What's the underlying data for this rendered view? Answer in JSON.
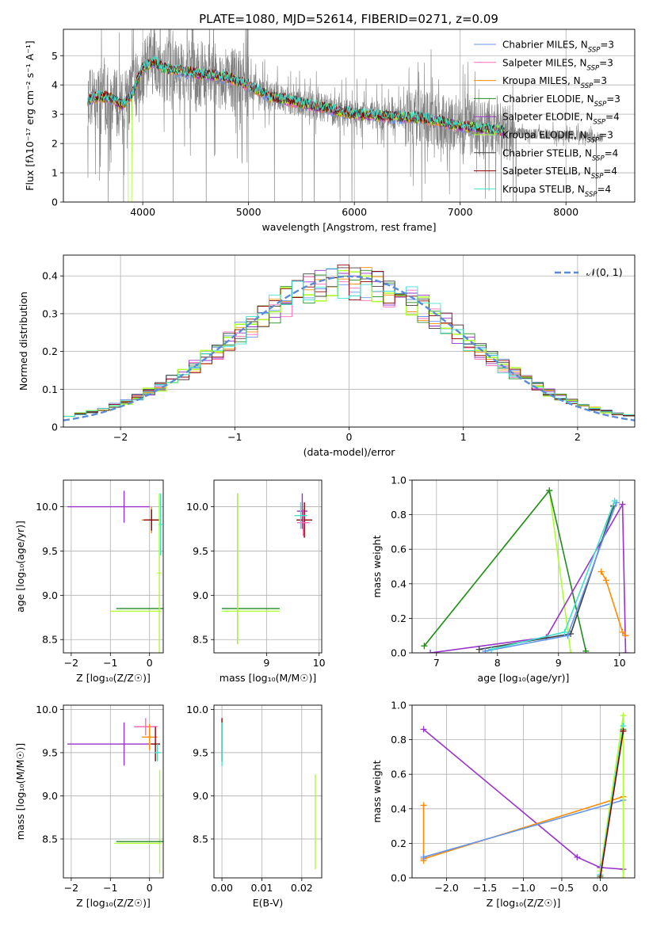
{
  "colors": {
    "cornflower": "#6495ed",
    "hotpink": "#ff69b4",
    "orange": "#ff8c00",
    "darkgreen": "#228b22",
    "purple": "#9932cc",
    "yellowgreen": "#adff2f",
    "gray": "#808080",
    "darkred": "#8b0000",
    "cyan": "#40e0d0"
  },
  "chart_data": [
    {
      "id": "spectrum",
      "type": "line",
      "title": "PLATE=1080, MJD=52614, FIBERID=0271, z=0.09",
      "xlabel": "wavelength [Angstrom, rest frame]",
      "ylabel": "Flux [fλ10⁻¹⁷ erg cm⁻² s⁻¹ A⁻¹]",
      "xlim": [
        3250,
        8650
      ],
      "ylim": [
        0,
        5.9
      ],
      "xticks": [
        4000,
        5000,
        6000,
        7000,
        8000
      ],
      "yticks": [
        0,
        1,
        2,
        3,
        4,
        5
      ],
      "legend_position": "top-right",
      "legend": [
        {
          "label": "Chabrier MILES, N_SSP=3",
          "color": "#6495ed"
        },
        {
          "label": "Salpeter MILES, N_SSP=3",
          "color": "#ff69b4"
        },
        {
          "label": "Kroupa MILES, N_SSP=3",
          "color": "#ff8c00"
        },
        {
          "label": "Chabrier ELODIE, N_SSP=3",
          "color": "#228b22"
        },
        {
          "label": "Salpeter ELODIE, N_SSP=4",
          "color": "#9932cc"
        },
        {
          "label": "Kroupa ELODIE, N_SSP=3",
          "color": "#adff2f"
        },
        {
          "label": "Chabrier STELIB, N_SSP=4",
          "color": "#404040"
        },
        {
          "label": "Salpeter STELIB, N_SSP=4",
          "color": "#8b0000"
        },
        {
          "label": "Kroupa STELIB, N_SSP=4",
          "color": "#40e0d0"
        }
      ],
      "model_continuum": {
        "x": [
          3480,
          3600,
          3700,
          3800,
          3900,
          4000,
          4100,
          4200,
          4400,
          4600,
          4800,
          5000,
          5200,
          5400,
          5600,
          5800,
          6000,
          6200,
          6400,
          6600,
          6800,
          7000,
          7200,
          7400
        ],
        "y": [
          3.5,
          3.6,
          3.55,
          3.3,
          3.7,
          4.6,
          4.8,
          4.55,
          4.45,
          4.35,
          4.25,
          4.0,
          3.6,
          3.45,
          3.3,
          3.15,
          3.0,
          2.95,
          2.9,
          2.88,
          2.75,
          2.6,
          2.5,
          2.45
        ]
      },
      "observed_range": [
        3480,
        8350
      ]
    },
    {
      "id": "residuals",
      "type": "line",
      "xlabel": "(data-model)/error",
      "ylabel": "Normed distribution",
      "xlim": [
        -2.5,
        2.5
      ],
      "ylim": [
        0,
        0.455
      ],
      "xticks": [
        -2,
        -1,
        0,
        1,
        2
      ],
      "yticks": [
        0.0,
        0.1,
        0.2,
        0.3,
        0.4
      ],
      "legend_position": "top-right",
      "legend": [
        {
          "label": "𝒩(0, 1)",
          "color": "#5b8ad6"
        }
      ],
      "reference_curve": "standard normal density"
    },
    {
      "id": "age_vs_Z",
      "type": "scatter",
      "xlabel": "Z [log₁₀(Z/Z☉)]",
      "ylabel": "age  [log₁₀(age/yr)]",
      "xlim": [
        -2.2,
        0.35
      ],
      "ylim": [
        8.35,
        10.3
      ],
      "xticks": [
        -2,
        -1,
        0
      ],
      "yticks": [
        8.5,
        9.0,
        9.5,
        10.0
      ],
      "points": [
        {
          "x": -0.65,
          "y": 10.0,
          "xerr": [
            1.45,
            0.65
          ],
          "yerr": 0.18,
          "color": "#9932cc"
        },
        {
          "x": 0.05,
          "y": 9.85,
          "xerr": 0.25,
          "yerr": 0.15,
          "color": "#ff8c00"
        },
        {
          "x": 0.05,
          "y": 9.85,
          "xerr": 0.2,
          "yerr": 0.12,
          "color": "#8b0000"
        },
        {
          "x": 0.28,
          "y": 9.8,
          "xerr": 0.05,
          "yerr": 0.35,
          "color": "#40e0d0"
        },
        {
          "x": -0.25,
          "y": 8.85,
          "xerr": 0.6,
          "yerr": 0.0,
          "color": "#228b22"
        },
        {
          "x": 0.25,
          "y": 9.25,
          "xerr": 0.05,
          "yerr": 0.9,
          "color": "#adff2f"
        },
        {
          "x": -0.35,
          "y": 8.82,
          "xerr": 0.65,
          "yerr": 0.0,
          "color": "#adff2f"
        }
      ]
    },
    {
      "id": "age_vs_mass",
      "type": "scatter",
      "xlabel": "mass [log₁₀(M/M☉)]",
      "ylabel": "",
      "xlim": [
        8.0,
        10.05
      ],
      "ylim": [
        8.35,
        10.3
      ],
      "xticks": [
        9,
        10
      ],
      "yticks": [
        8.5,
        9.0,
        9.5,
        10.0
      ],
      "points": [
        {
          "x": 8.7,
          "y": 8.85,
          "xerr": 0.55,
          "yerr": 0.0,
          "color": "#228b22"
        },
        {
          "x": 8.45,
          "y": 9.3,
          "xerr": 0.0,
          "yerr": 0.85,
          "color": "#228b22"
        },
        {
          "x": 8.45,
          "y": 9.3,
          "xerr": 0.0,
          "yerr": 0.85,
          "color": "#adff2f"
        },
        {
          "x": 8.7,
          "y": 8.82,
          "xerr": 0.55,
          "yerr": 0.0,
          "color": "#adff2f"
        },
        {
          "x": 9.68,
          "y": 9.95,
          "xerr": 0.1,
          "yerr": 0.2,
          "color": "#9932cc"
        },
        {
          "x": 9.72,
          "y": 9.85,
          "xerr": 0.15,
          "yerr": 0.2,
          "color": "#8b0000"
        },
        {
          "x": 9.7,
          "y": 9.82,
          "xerr": 0.12,
          "yerr": 0.15,
          "color": "#ff69b4"
        },
        {
          "x": 9.65,
          "y": 9.9,
          "xerr": 0.12,
          "yerr": 0.15,
          "color": "#40e0d0"
        }
      ]
    },
    {
      "id": "weight_vs_age",
      "type": "line",
      "xlabel": "age  [log₁₀(age/yr)]",
      "ylabel": "mass weight",
      "xlim": [
        6.6,
        10.25
      ],
      "ylim": [
        0,
        1.0
      ],
      "xticks": [
        7,
        8,
        9,
        10
      ],
      "yticks": [
        0.0,
        0.2,
        0.4,
        0.6,
        0.8,
        1.0
      ],
      "series": [
        {
          "color": "#adff2f",
          "x": [
            6.8,
            8.85,
            9.2
          ],
          "y": [
            0.04,
            0.94,
            0.0
          ]
        },
        {
          "color": "#228b22",
          "x": [
            6.8,
            8.85,
            9.45
          ],
          "y": [
            0.04,
            0.94,
            0.01
          ]
        },
        {
          "color": "#9932cc",
          "x": [
            6.9,
            8.8,
            10.05,
            10.1
          ],
          "y": [
            0.0,
            0.09,
            0.86,
            0.0
          ]
        },
        {
          "color": "#404040",
          "x": [
            7.7,
            9.2,
            9.9
          ],
          "y": [
            0.02,
            0.11,
            0.85
          ]
        },
        {
          "color": "#6495ed",
          "x": [
            7.8,
            9.15,
            9.95
          ],
          "y": [
            0.01,
            0.1,
            0.87
          ]
        },
        {
          "color": "#40e0d0",
          "x": [
            7.9,
            9.1,
            9.92
          ],
          "y": [
            0.02,
            0.12,
            0.88
          ]
        },
        {
          "color": "#ff8c00",
          "x": [
            9.7,
            9.78,
            10.05,
            10.1
          ],
          "y": [
            0.47,
            0.42,
            0.12,
            0.1
          ]
        }
      ]
    },
    {
      "id": "mass_vs_Z",
      "type": "scatter",
      "xlabel": "Z [log₁₀(Z/Z☉)]",
      "ylabel": "mass [log₁₀(M/M☉)]",
      "xlim": [
        -2.2,
        0.35
      ],
      "ylim": [
        8.05,
        10.05
      ],
      "xticks": [
        -2,
        -1,
        0
      ],
      "yticks": [
        8.5,
        9.0,
        9.5,
        10.0
      ],
      "points": [
        {
          "x": -0.65,
          "y": 9.6,
          "xerr": [
            1.45,
            0.65
          ],
          "yerr": 0.25,
          "color": "#9932cc"
        },
        {
          "x": -0.1,
          "y": 9.8,
          "xerr": 0.3,
          "yerr": 0.1,
          "color": "#ff69b4"
        },
        {
          "x": 0.0,
          "y": 9.68,
          "xerr": 0.2,
          "yerr": 0.15,
          "color": "#ff8c00"
        },
        {
          "x": 0.15,
          "y": 9.6,
          "xerr": 0.12,
          "yerr": 0.2,
          "color": "#8b0000"
        },
        {
          "x": 0.2,
          "y": 9.5,
          "xerr": 0.08,
          "yerr": 0.1,
          "color": "#40e0d0"
        },
        {
          "x": 0.26,
          "y": 8.7,
          "xerr": 0.0,
          "yerr": 0.6,
          "color": "#adff2f"
        },
        {
          "x": -0.25,
          "y": 8.47,
          "xerr": 0.6,
          "yerr": 0.0,
          "color": "#228b22"
        },
        {
          "x": -0.3,
          "y": 8.45,
          "xerr": 0.6,
          "yerr": 0.0,
          "color": "#adff2f"
        }
      ]
    },
    {
      "id": "mass_vs_ebv",
      "type": "scatter",
      "xlabel": "E(B-V)",
      "ylabel": "",
      "xlim": [
        -0.002,
        0.025
      ],
      "ylim": [
        8.05,
        10.05
      ],
      "xticks": [
        0.0,
        0.01,
        0.02
      ],
      "yticks": [
        8.5,
        9.0,
        9.5,
        10.0
      ],
      "points": [
        {
          "x": 0.0,
          "y": 9.65,
          "xerr": 0.0,
          "yerr": 0.25,
          "color": "#8b0000"
        },
        {
          "x": 0.0,
          "y": 9.6,
          "xerr": 0.0,
          "yerr": 0.25,
          "color": "#40e0d0"
        },
        {
          "x": 0.0234,
          "y": 8.7,
          "xerr": 0.0,
          "yerr": 0.55,
          "color": "#adff2f"
        }
      ]
    },
    {
      "id": "weight_vs_Z",
      "type": "line",
      "xlabel": "Z [log₁₀(Z/Z☉)]",
      "ylabel": "mass weight",
      "xlim": [
        -2.45,
        0.45
      ],
      "ylim": [
        0,
        1.0
      ],
      "xticks": [
        -2.0,
        -1.5,
        -1.0,
        -0.5,
        0.0
      ],
      "yticks": [
        0.0,
        0.2,
        0.4,
        0.6,
        0.8,
        1.0
      ],
      "series": [
        {
          "color": "#9932cc",
          "x": [
            -2.3,
            -0.3,
            0.0,
            0.3
          ],
          "y": [
            0.86,
            0.12,
            0.06,
            0.05
          ]
        },
        {
          "color": "#ff8c00",
          "x": [
            -2.3,
            -2.3,
            -2.3,
            0.3
          ],
          "y": [
            0.42,
            0.1,
            0.11,
            0.47
          ]
        },
        {
          "color": "#6495ed",
          "x": [
            -2.3,
            0.3
          ],
          "y": [
            0.12,
            0.45
          ]
        },
        {
          "color": "#adff2f",
          "x": [
            0.0,
            0.3,
            0.3
          ],
          "y": [
            0.04,
            0.94,
            0.0
          ]
        },
        {
          "color": "#228b22",
          "x": [
            0.0,
            0.3
          ],
          "y": [
            0.01,
            0.86
          ]
        },
        {
          "color": "#40e0d0",
          "x": [
            0.0,
            0.3
          ],
          "y": [
            0.02,
            0.88
          ]
        },
        {
          "color": "#8b0000",
          "x": [
            0.0,
            0.3
          ],
          "y": [
            0.0,
            0.85
          ]
        }
      ]
    }
  ]
}
